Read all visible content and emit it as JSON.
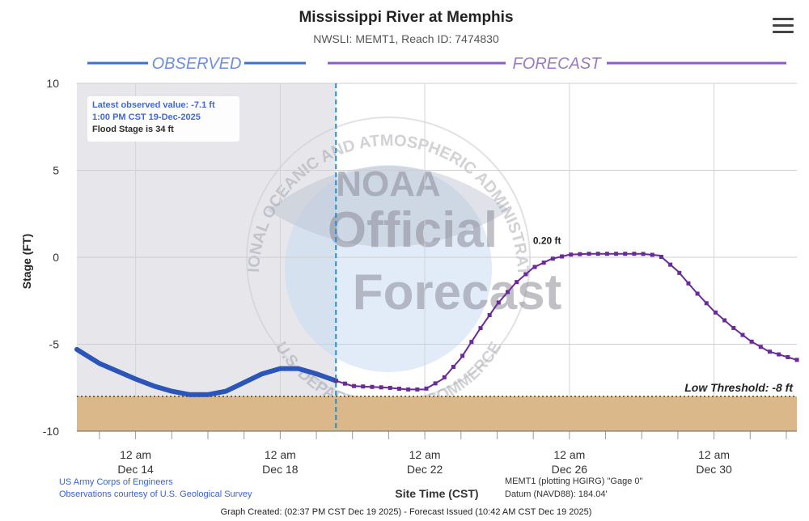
{
  "chart_data": {
    "type": "line",
    "title": "Mississippi River at Memphis",
    "subtitle": "NWSLI: MEMT1, Reach ID: 7474830",
    "ylabel": "Stage (FT)",
    "xlabel": "Site Time (CST)",
    "ylim": [
      -10,
      10
    ],
    "xlim": [
      "2025-12-12 09:00",
      "2026-01-01 07:00"
    ],
    "yticks": [
      10,
      5,
      0,
      -5,
      -10
    ],
    "ytick_labels": [
      "10",
      "5",
      "0",
      "-5",
      "-10"
    ],
    "xticks": [
      "2025-12-14",
      "2025-12-18",
      "2025-12-22",
      "2025-12-26",
      "2025-12-30"
    ],
    "xtick_labels": [
      {
        "time": "12 am",
        "date": "Dec 14"
      },
      {
        "time": "12 am",
        "date": "Dec 18"
      },
      {
        "time": "12 am",
        "date": "Dec 22"
      },
      {
        "time": "12 am",
        "date": "Dec 26"
      },
      {
        "time": "12 am",
        "date": "Dec 30"
      }
    ],
    "grid": true,
    "series": [
      {
        "name": "OBSERVED",
        "color": "#2b55b8",
        "points": [
          [
            "2025-12-12 09:00",
            -5.3
          ],
          [
            "2025-12-13 00:00",
            -6.1
          ],
          [
            "2025-12-14 00:00",
            -7.0
          ],
          [
            "2025-12-14 12:00",
            -7.4
          ],
          [
            "2025-12-15 00:00",
            -7.7
          ],
          [
            "2025-12-15 12:00",
            -7.9
          ],
          [
            "2025-12-16 00:00",
            -7.9
          ],
          [
            "2025-12-16 12:00",
            -7.7
          ],
          [
            "2025-12-17 00:00",
            -7.2
          ],
          [
            "2025-12-17 12:00",
            -6.7
          ],
          [
            "2025-12-18 00:00",
            -6.4
          ],
          [
            "2025-12-18 12:00",
            -6.4
          ],
          [
            "2025-12-19 00:00",
            -6.7
          ],
          [
            "2025-12-19 13:00",
            -7.1
          ]
        ]
      },
      {
        "name": "FORECAST",
        "color": "#6a2a9a",
        "points": [
          [
            "2025-12-19 13:00",
            -7.1
          ],
          [
            "2025-12-20 00:00",
            -7.4
          ],
          [
            "2025-12-21 00:00",
            -7.5
          ],
          [
            "2025-12-21 12:00",
            -7.6
          ],
          [
            "2025-12-22 00:00",
            -7.6
          ],
          [
            "2025-12-22 12:00",
            -7.0
          ],
          [
            "2025-12-23 00:00",
            -5.8
          ],
          [
            "2025-12-23 12:00",
            -4.2
          ],
          [
            "2025-12-24 00:00",
            -2.7
          ],
          [
            "2025-12-24 12:00",
            -1.5
          ],
          [
            "2025-12-25 00:00",
            -0.6
          ],
          [
            "2025-12-25 12:00",
            -0.1
          ],
          [
            "2025-12-26 00:00",
            0.15
          ],
          [
            "2025-12-26 12:00",
            0.2
          ],
          [
            "2025-12-27 00:00",
            0.2
          ],
          [
            "2025-12-27 12:00",
            0.2
          ],
          [
            "2025-12-28 00:00",
            0.2
          ],
          [
            "2025-12-28 12:00",
            0.1
          ],
          [
            "2025-12-29 00:00",
            -0.8
          ],
          [
            "2025-12-29 12:00",
            -2.0
          ],
          [
            "2025-12-30 00:00",
            -3.1
          ],
          [
            "2025-12-30 12:00",
            -4.0
          ],
          [
            "2025-12-31 00:00",
            -4.8
          ],
          [
            "2025-12-31 12:00",
            -5.4
          ],
          [
            "2026-01-01 07:00",
            -5.9
          ]
        ]
      }
    ],
    "observed_forecast_boundary": "2025-12-19 13:00",
    "low_threshold": {
      "value": -8,
      "label": "Low Threshold: -8 ft",
      "color": "#dab88a"
    },
    "peak_annotation": {
      "time": "2025-12-26 12:00",
      "value": 0.2,
      "label": "0.20 ft"
    },
    "section_labels": {
      "observed": "OBSERVED",
      "forecast": "FORECAST"
    },
    "observed_bg_color": "#e6e6eb",
    "watermark": [
      "NOAA",
      "Official",
      "Forecast",
      "NATIONAL OCEANIC AND ATMOSPHERIC ADMINISTRATION",
      "U.S. DEPARTMENT OF COMMERCE"
    ]
  },
  "info": {
    "line1": "Latest observed value: -7.1 ft",
    "line2": "1:00 PM CST 19-Dec-2025",
    "line3": "Flood Stage is 34 ft"
  },
  "credits": {
    "left1": "US Army Corps of Engineers",
    "left2": "Observations courtesy of U.S. Geological Survey",
    "right1": "MEMT1 (plotting HGIRG) \"Gage 0\"",
    "right2": "Datum (NAVD88): 184.04'",
    "footer": "Graph Created: (02:37 PM CST Dec 19 2025) - Forecast Issued (10:42 AM CST Dec 19 2025)"
  },
  "colors": {
    "observed_blue": "#2b55b8",
    "forecast_purple": "#6a2a9a",
    "credit_blue": "#3a62d8"
  }
}
